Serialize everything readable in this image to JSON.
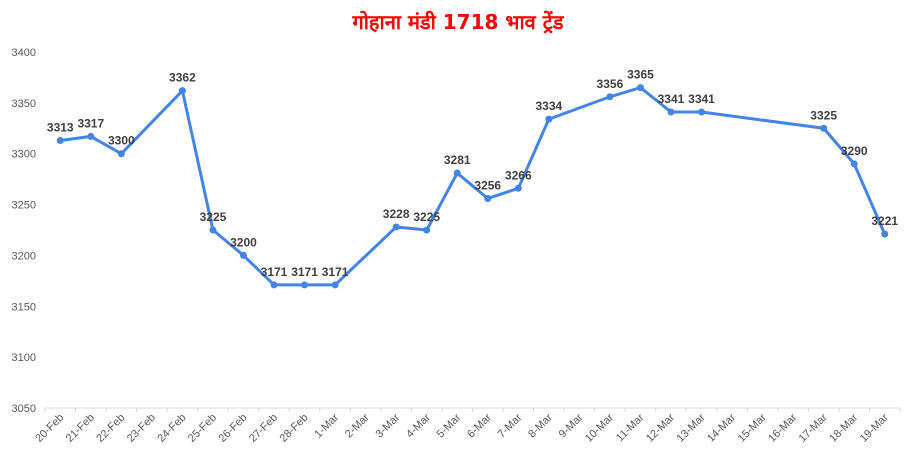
{
  "chart_data": {
    "type": "line",
    "title": "गोहाना मंडी 1718 भाव ट्रेंड",
    "xlabel": "",
    "ylabel": "",
    "ylim": [
      3050,
      3400
    ],
    "yticks": [
      3050,
      3100,
      3150,
      3200,
      3250,
      3300,
      3350,
      3400
    ],
    "grid": false,
    "legend": "none",
    "colors": {
      "line": "#4285e6",
      "title": "#ff0000"
    },
    "categories": [
      "20-Feb",
      "21-Feb",
      "22-Feb",
      "23-Feb",
      "24-Feb",
      "25-Feb",
      "26-Feb",
      "27-Feb",
      "28-Feb",
      "1-Mar",
      "2-Mar",
      "3-Mar",
      "4-Mar",
      "5-Mar",
      "6-Mar",
      "7-Mar",
      "8-Mar",
      "9-Mar",
      "10-Mar",
      "11-Mar",
      "12-Mar",
      "13-Mar",
      "14-Mar",
      "15-Mar",
      "16-Mar",
      "17-Mar",
      "18-Mar",
      "19-Mar"
    ],
    "series": [
      {
        "values": [
          3313,
          3317,
          3300,
          null,
          3362,
          3225,
          3200,
          3171,
          3171,
          3171,
          null,
          3228,
          3225,
          3281,
          3256,
          3266,
          3334,
          null,
          3356,
          3365,
          3341,
          3341,
          null,
          null,
          null,
          3325,
          3290,
          3221
        ],
        "connect_gaps": true,
        "data_labels": true
      }
    ]
  }
}
